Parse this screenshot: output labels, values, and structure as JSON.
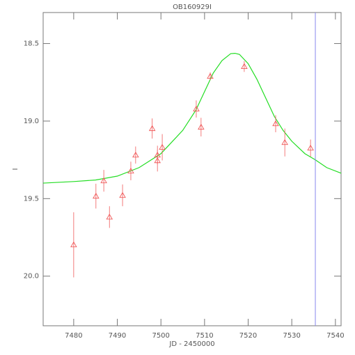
{
  "chart_data": {
    "type": "scatter",
    "title": "OB160929I",
    "xlabel": "JD - 2450000",
    "ylabel": "I",
    "xlim": [
      7473,
      7541.3
    ],
    "ylim": [
      20.32,
      18.3
    ],
    "xticks": [
      7480,
      7490,
      7500,
      7510,
      7520,
      7530,
      7540
    ],
    "yticks": [
      18.5,
      {
        "value": 19,
        "label": "19.0"
      },
      19.5,
      {
        "value": 20,
        "label": "20.0"
      }
    ],
    "points": {
      "color": "#f05a5a",
      "x": [
        7480.0,
        7485.1,
        7486.9,
        7488.2,
        7491.2,
        7493.1,
        7494.2,
        7498.0,
        7499.2,
        7499.2,
        7500.3,
        7508.1,
        7509.2,
        7511.3,
        7519.1,
        7526.3,
        7528.4,
        7534.3
      ],
      "values": [
        19.798,
        19.484,
        19.385,
        19.619,
        19.479,
        19.322,
        19.219,
        19.048,
        19.219,
        19.255,
        19.169,
        18.922,
        19.039,
        18.711,
        18.648,
        19.017,
        19.138,
        19.174
      ],
      "errors": [
        0.21,
        0.08,
        0.07,
        0.07,
        0.07,
        0.06,
        0.055,
        0.065,
        0.06,
        0.07,
        0.085,
        0.055,
        0.06,
        0.025,
        0.035,
        0.055,
        0.09,
        0.055
      ]
    },
    "model": {
      "color": "#22dd22",
      "x": [
        7473,
        7480,
        7485,
        7490,
        7495,
        7500,
        7505,
        7508,
        7510,
        7512,
        7514,
        7516,
        7517,
        7518,
        7520,
        7522,
        7524,
        7526,
        7528,
        7530,
        7533,
        7535.4,
        7538,
        7541.3
      ],
      "values": [
        19.4,
        19.39,
        19.38,
        19.355,
        19.3,
        19.21,
        19.06,
        18.93,
        18.81,
        18.69,
        18.61,
        18.565,
        18.563,
        18.57,
        18.63,
        18.73,
        18.85,
        18.97,
        19.06,
        19.13,
        19.21,
        19.25,
        19.3,
        19.336
      ]
    },
    "vline": {
      "x": 7535.4,
      "color": "#8888ee"
    }
  }
}
